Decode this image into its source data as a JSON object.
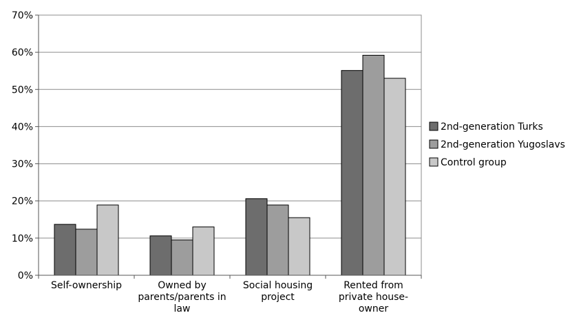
{
  "chart_data": {
    "type": "bar",
    "categories": [
      "Self-ownership",
      "Owned by parents/parents in law",
      "Social housing project",
      "Rented from private house-owner"
    ],
    "category_lines": [
      [
        "Self-ownership"
      ],
      [
        "Owned by",
        "parents/parents in",
        "law"
      ],
      [
        "Social housing",
        "project"
      ],
      [
        "Rented from",
        "private house-",
        "owner"
      ]
    ],
    "series": [
      {
        "name": "2nd-generation Turks",
        "values": [
          13.7,
          10.6,
          20.6,
          55.1
        ],
        "color": "#6d6d6d"
      },
      {
        "name": "2nd-generation Yugoslavs",
        "values": [
          12.4,
          9.5,
          18.9,
          59.2
        ],
        "color": "#9d9d9d"
      },
      {
        "name": "Control group",
        "values": [
          18.9,
          13.0,
          15.5,
          53.0
        ],
        "color": "#c8c8c8"
      }
    ],
    "ylim": [
      0,
      70
    ],
    "yticks": [
      "0%",
      "10%",
      "20%",
      "30%",
      "40%",
      "50%",
      "60%",
      "70%"
    ],
    "grid": true,
    "legend": "right",
    "title": "",
    "xlabel": "",
    "ylabel": ""
  }
}
